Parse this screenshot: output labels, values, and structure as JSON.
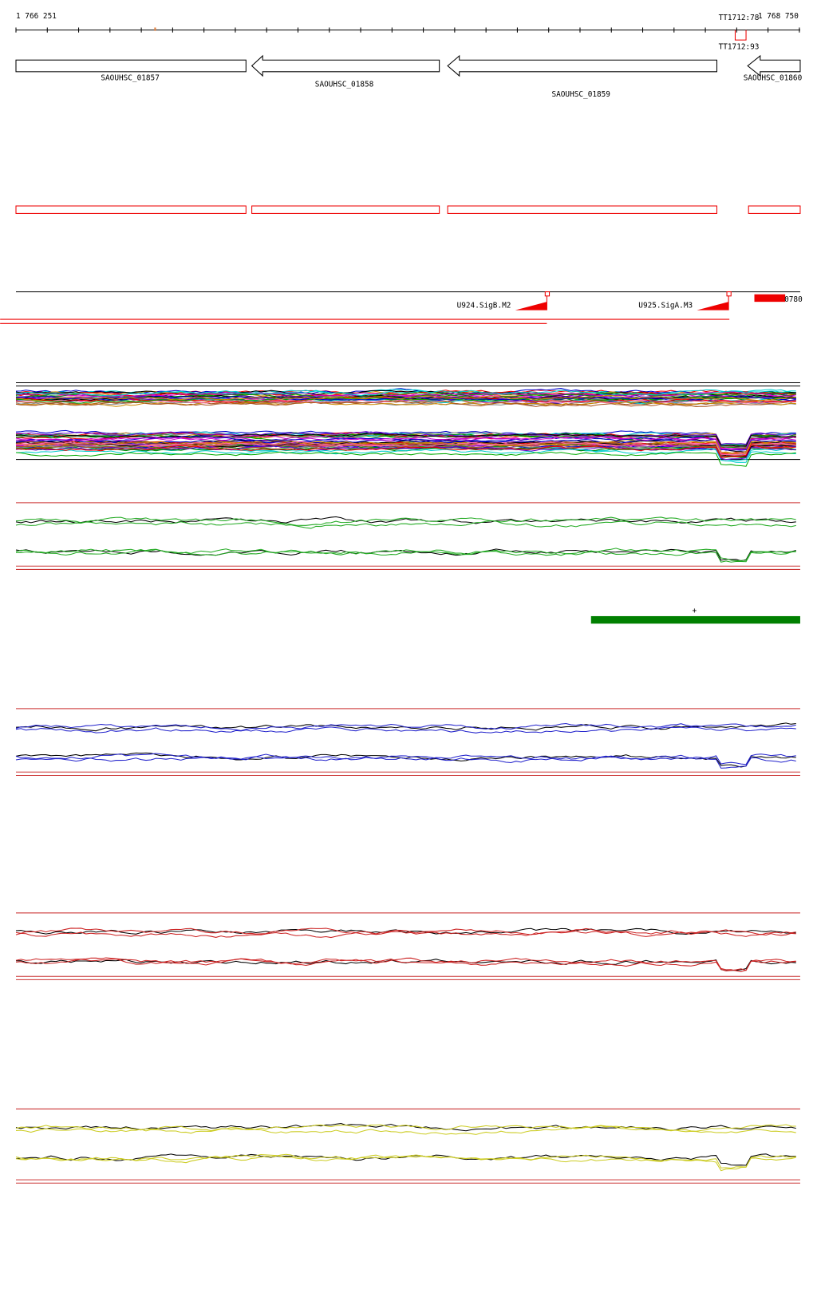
{
  "ruler": {
    "start": "1 766 251",
    "end": "1 768 750"
  },
  "terminators": [
    "TT1712:78",
    "TT1712:93"
  ],
  "genes": [
    "SAOUHSC_01857",
    "SAOUHSC_01858",
    "SAOUHSC_01859",
    "SAOUHSC_01860"
  ],
  "promoters": [
    "U924.SigB.M2",
    "U925.SigA.M3"
  ],
  "feature_label": "0780",
  "strand": "+"
}
